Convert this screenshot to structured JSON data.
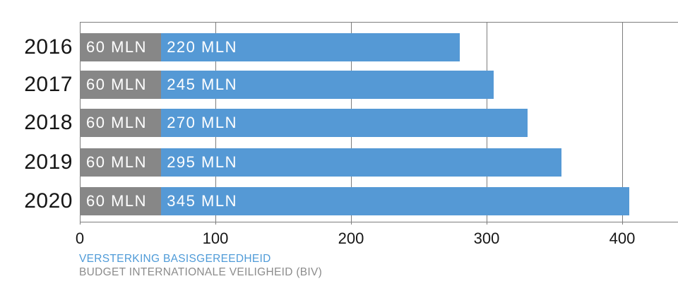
{
  "chart_data": {
    "type": "bar",
    "orientation": "horizontal",
    "stacked": true,
    "categories": [
      "2016",
      "2017",
      "2018",
      "2019",
      "2020"
    ],
    "series": [
      {
        "name": "BUDGET INTERNATIONALE VEILIGHEID (BIV)",
        "color": "#878787",
        "values": [
          60,
          60,
          60,
          60,
          60
        ],
        "bar_labels": [
          "60 MLN",
          "60 MLN",
          "60 MLN",
          "60 MLN",
          "60 MLN"
        ]
      },
      {
        "name": "VERSTERKING BASISGEREEDHEID",
        "color": "#5599d5",
        "values": [
          220,
          245,
          270,
          295,
          345
        ],
        "bar_labels": [
          "220 MLN",
          "245 MLN",
          "270 MLN",
          "295 MLN",
          "345 MLN"
        ]
      }
    ],
    "x_axis": {
      "ticks": [
        0,
        100,
        200,
        300,
        400
      ],
      "tick_labels": [
        "0",
        "100",
        "200",
        "300",
        "400"
      ],
      "gridlines": true
    },
    "legend": {
      "position": "bottom-left",
      "items": [
        {
          "label": "VERSTERKING BASISGEREEDHEID",
          "color": "#4f9bd8"
        },
        {
          "label": "BUDGET INTERNATIONALE VEILIGHEID (BIV)",
          "color": "#8c8c8c"
        }
      ]
    },
    "bar_label_text_color": "#ffffff",
    "grid_color": "#7d7d7d",
    "text_color": "#161616"
  }
}
